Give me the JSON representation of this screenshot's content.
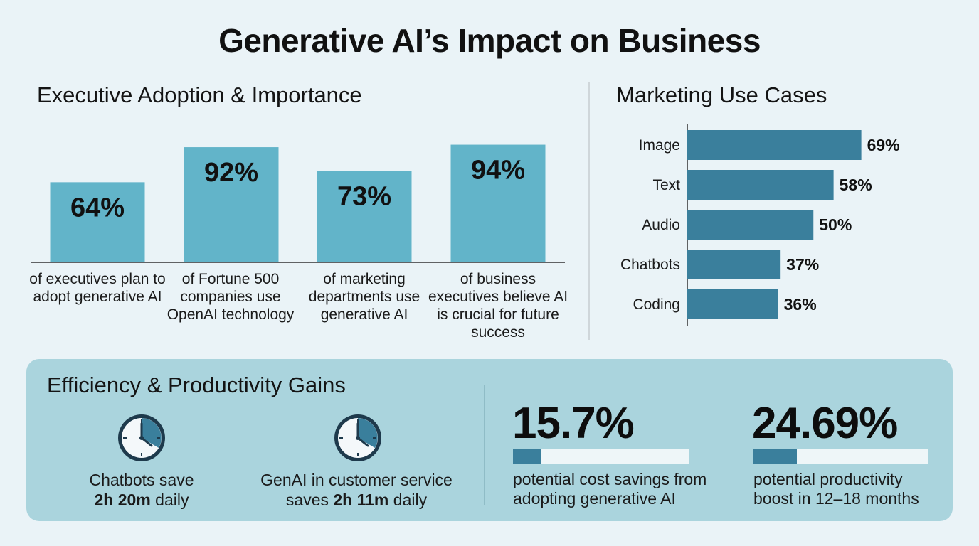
{
  "title": "Generative AI’s Impact on Business",
  "colors": {
    "background": "#eaf3f7",
    "adoption_bar": "#62b4c9",
    "marketing_bar": "#3a7f9c",
    "panel": "#aad4dd",
    "progress_fill": "#3a7f9c",
    "progress_track": "#eef6f8"
  },
  "adoption": {
    "title": "Executive Adoption & Importance",
    "captions": [
      "of executives plan to adopt generative AI",
      "of Fortune 500 companies use OpenAI technology",
      "of marketing departments use generative AI",
      "of business executives believe AI is crucial for future success"
    ]
  },
  "marketing": {
    "title": "Marketing Use Cases"
  },
  "chart_data": [
    {
      "type": "bar",
      "title": "Executive Adoption & Importance",
      "categories": [
        "",
        "",
        "",
        ""
      ],
      "values": [
        64,
        92,
        73,
        94
      ],
      "value_labels": [
        "64%",
        "92%",
        "73%",
        "94%"
      ],
      "ylim": [
        0,
        100
      ],
      "grid": false
    },
    {
      "type": "bar",
      "orientation": "horizontal",
      "title": "Marketing Use Cases",
      "categories": [
        "Image",
        "Text",
        "Audio",
        "Chatbots",
        "Coding"
      ],
      "values": [
        69,
        58,
        50,
        37,
        36
      ],
      "value_labels": [
        "69%",
        "58%",
        "50%",
        "37%",
        "36%"
      ],
      "xlim": [
        0,
        100
      ],
      "grid": false
    }
  ],
  "efficiency": {
    "title": "Efficiency & Productivity Gains",
    "time_savings": [
      {
        "icon": "clock-icon",
        "text_before": "Chatbots save",
        "highlight": "2h 20m",
        "text_after": "daily"
      },
      {
        "icon": "clock-icon",
        "text_before": "GenAI in customer service saves",
        "highlight": "2h 11m",
        "text_after": "daily"
      }
    ],
    "stats": [
      {
        "value": "15.7%",
        "fraction": 0.157,
        "caption": "potential cost savings from adopting generative AI"
      },
      {
        "value": "24.69%",
        "fraction": 0.2469,
        "caption": "potential productivity boost in 12–18 months"
      }
    ]
  }
}
